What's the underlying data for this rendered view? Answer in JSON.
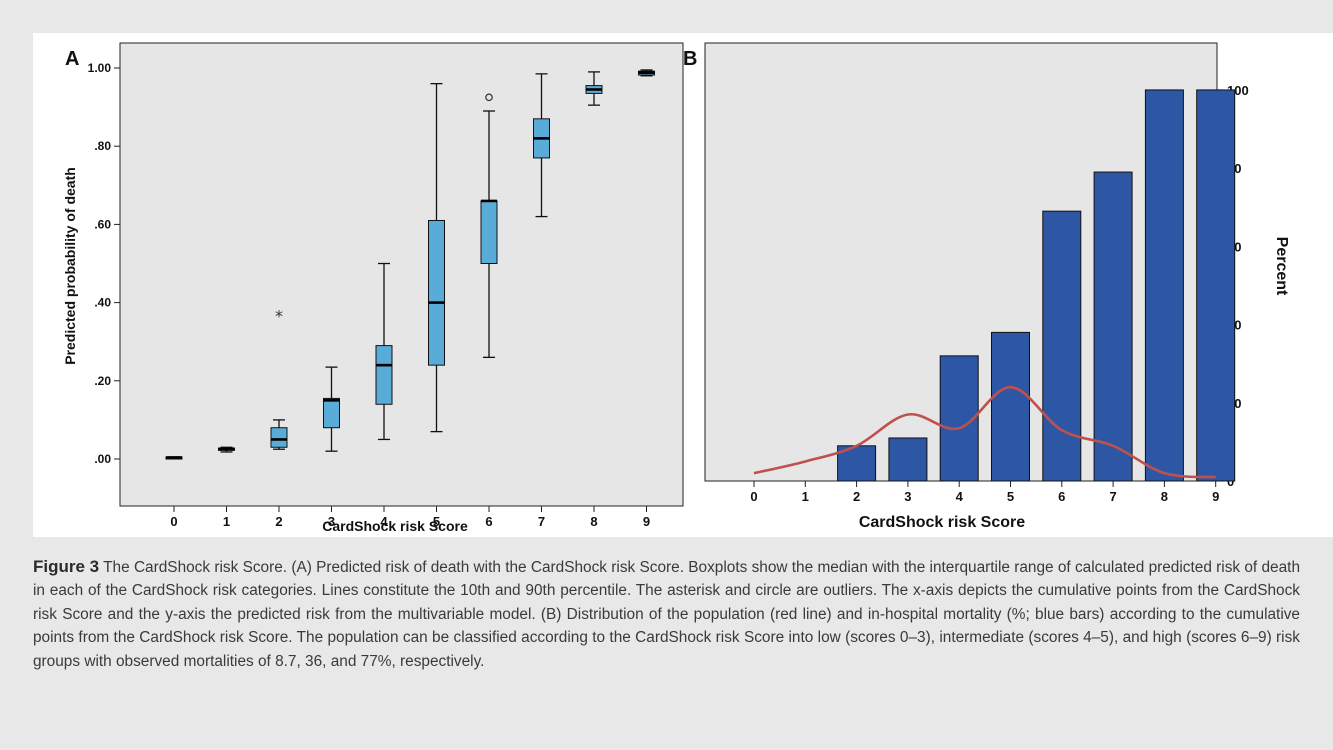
{
  "chart_data": [
    {
      "type": "box",
      "panel_label": "A",
      "xlabel": "CardShock risk Score",
      "ylabel": "Predicted probability of death",
      "categories": [
        "0",
        "1",
        "2",
        "3",
        "4",
        "5",
        "6",
        "7",
        "8",
        "9"
      ],
      "y_ticks": [
        ".00",
        ".20",
        ".40",
        ".60",
        ".80",
        "1.00"
      ],
      "ylim": [
        0,
        1.0
      ],
      "grid": false,
      "box_color": "#5aacd8",
      "boxes": [
        {
          "x": "0",
          "whisker_low": 0.003,
          "q1": 0.003,
          "median": 0.004,
          "q3": 0.005,
          "whisker_high": 0.005
        },
        {
          "x": "1",
          "whisker_low": 0.018,
          "q1": 0.022,
          "median": 0.026,
          "q3": 0.028,
          "whisker_high": 0.03
        },
        {
          "x": "2",
          "whisker_low": 0.025,
          "q1": 0.03,
          "median": 0.05,
          "q3": 0.08,
          "whisker_high": 0.1
        },
        {
          "x": "3",
          "whisker_low": 0.02,
          "q1": 0.08,
          "median": 0.15,
          "q3": 0.155,
          "whisker_high": 0.235
        },
        {
          "x": "4",
          "whisker_low": 0.05,
          "q1": 0.14,
          "median": 0.24,
          "q3": 0.29,
          "whisker_high": 0.5
        },
        {
          "x": "5",
          "whisker_low": 0.07,
          "q1": 0.24,
          "median": 0.4,
          "q3": 0.61,
          "whisker_high": 0.96
        },
        {
          "x": "6",
          "whisker_low": 0.26,
          "q1": 0.5,
          "median": 0.66,
          "q3": 0.66,
          "whisker_high": 0.89
        },
        {
          "x": "7",
          "whisker_low": 0.62,
          "q1": 0.77,
          "median": 0.82,
          "q3": 0.87,
          "whisker_high": 0.985
        },
        {
          "x": "8",
          "whisker_low": 0.905,
          "q1": 0.935,
          "median": 0.945,
          "q3": 0.955,
          "whisker_high": 0.99
        },
        {
          "x": "9",
          "whisker_low": 0.98,
          "q1": 0.982,
          "median": 0.988,
          "q3": 0.992,
          "whisker_high": 0.995
        }
      ],
      "outliers": [
        {
          "x": "2",
          "y": 0.37,
          "marker": "asterisk"
        },
        {
          "x": "6",
          "y": 0.925,
          "marker": "circle"
        }
      ]
    },
    {
      "type": "bar",
      "panel_label": "B",
      "xlabel": "CardShock risk Score",
      "ylabel": "Percent",
      "y_axis_side": "right",
      "categories": [
        "0",
        "1",
        "2",
        "3",
        "4",
        "5",
        "6",
        "7",
        "8",
        "9"
      ],
      "y_ticks": [
        "0",
        "20",
        "40",
        "60",
        "80",
        "100"
      ],
      "ylim": [
        0,
        112
      ],
      "grid": false,
      "bar_color": "#2d57a5",
      "line_color": "#c0504d",
      "series": [
        {
          "type": "bar",
          "values": [
            null,
            null,
            9,
            11,
            32,
            38,
            69,
            79,
            100,
            100
          ]
        },
        {
          "type": "line",
          "values": [
            2,
            5,
            9,
            17,
            13.5,
            24,
            13,
            9,
            2,
            1
          ]
        }
      ]
    }
  ],
  "caption": {
    "label": "Figure 3",
    "text": " The CardShock risk Score. (A) Predicted risk of death with the CardShock risk Score. Boxplots show the median with the interquartile range of calculated predicted risk of death in each of the CardShock risk categories. Lines constitute the 10th and 90th percentile. The asterisk and circle are outliers. The x-axis depicts the cumulative points from the CardShock risk Score and the y-axis the predicted risk from the multivariable model. (B) Distribution of the population (red line) and in-hospital mortality (%; blue bars) according to the cumulative points from the CardShock risk Score. The population can be classified according to the CardShock risk Score into low (scores 0–3), intermediate (scores 4–5), and high (scores 6–9) risk groups with observed mortalities of 8.7, 36, and 77%, respectively."
  }
}
